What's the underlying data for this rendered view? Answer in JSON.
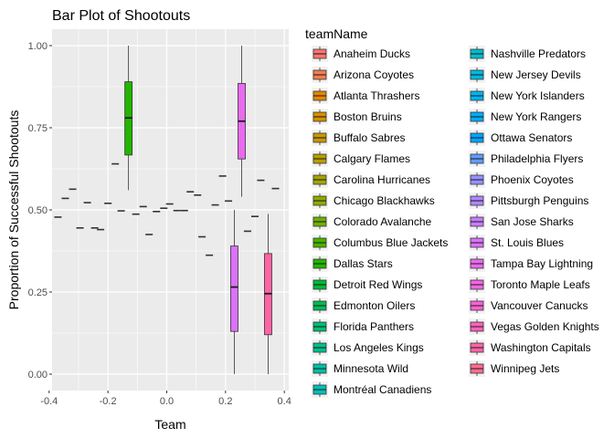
{
  "chart_data": {
    "type": "boxplot",
    "title": "Bar Plot of Shootouts",
    "xlabel": "Team",
    "ylabel": "Proportion of Successful Shootouts",
    "xlim": [
      -0.39,
      0.415
    ],
    "ylim": [
      -0.05,
      1.05
    ],
    "x_ticks": [
      -0.4,
      -0.2,
      0.0,
      0.2,
      0.4
    ],
    "x_tick_labels": [
      "-0.4",
      "-0.2",
      "0.0",
      "0.2",
      "0.4"
    ],
    "y_ticks": [
      0.0,
      0.25,
      0.5,
      0.75,
      1.0
    ],
    "y_tick_labels": [
      "0.00",
      "0.25",
      "0.50",
      "0.75",
      "1.00"
    ],
    "grid": true,
    "legend_title": "teamName",
    "legend_position": "right",
    "series": [
      {
        "name": "Anaheim Ducks",
        "color": "#F8766D",
        "x": -0.37,
        "box": [
          0.478,
          0.478,
          0.478,
          0.478,
          0.478
        ]
      },
      {
        "name": "Arizona Coyotes",
        "color": "#F07F4F",
        "x": -0.345,
        "box": [
          0.535,
          0.535,
          0.535,
          0.535,
          0.535
        ]
      },
      {
        "name": "Atlanta Thrashers",
        "color": "#E58700",
        "x": -0.32,
        "box": [
          0.563,
          0.563,
          0.563,
          0.563,
          0.563
        ]
      },
      {
        "name": "Boston Bruins",
        "color": "#D89000",
        "x": -0.295,
        "box": [
          0.445,
          0.445,
          0.445,
          0.445,
          0.445
        ]
      },
      {
        "name": "Buffalo Sabres",
        "color": "#C99800",
        "x": -0.27,
        "box": [
          0.522,
          0.522,
          0.522,
          0.522,
          0.522
        ]
      },
      {
        "name": "Calgary Flames",
        "color": "#B79F00",
        "x": -0.245,
        "box": [
          0.445,
          0.445,
          0.445,
          0.445,
          0.445
        ]
      },
      {
        "name": "Carolina Hurricanes",
        "color": "#A3A500",
        "x": -0.225,
        "box": [
          0.44,
          0.44,
          0.44,
          0.44,
          0.44
        ]
      },
      {
        "name": "Chicago Blackhawks",
        "color": "#8CAB00",
        "x": -0.2,
        "box": [
          0.52,
          0.52,
          0.52,
          0.52,
          0.52
        ]
      },
      {
        "name": "Colorado Avalanche",
        "color": "#6FB000",
        "x": -0.175,
        "box": [
          0.64,
          0.64,
          0.64,
          0.64,
          0.64
        ]
      },
      {
        "name": "Columbus Blue Jackets",
        "color": "#45B500",
        "x": -0.155,
        "box": [
          0.497,
          0.497,
          0.497,
          0.497,
          0.497
        ]
      },
      {
        "name": "Dallas Stars",
        "color": "#22B600",
        "x": -0.13,
        "box": [
          0.56,
          0.667,
          0.78,
          0.89,
          1.0
        ]
      },
      {
        "name": "Detroit Red Wings",
        "color": "#00BA38",
        "x": -0.105,
        "box": [
          0.487,
          0.487,
          0.487,
          0.487,
          0.487
        ]
      },
      {
        "name": "Edmonton Oilers",
        "color": "#00BC56",
        "x": -0.08,
        "box": [
          0.51,
          0.51,
          0.51,
          0.51,
          0.51
        ]
      },
      {
        "name": "Florida Panthers",
        "color": "#00BF73",
        "x": -0.06,
        "box": [
          0.425,
          0.425,
          0.425,
          0.425,
          0.425
        ]
      },
      {
        "name": "Los Angeles Kings",
        "color": "#00C08B",
        "x": -0.035,
        "box": [
          0.495,
          0.495,
          0.495,
          0.495,
          0.495
        ]
      },
      {
        "name": "Minnesota Wild",
        "color": "#00C1A2",
        "x": -0.01,
        "box": [
          0.505,
          0.505,
          0.505,
          0.505,
          0.505
        ]
      },
      {
        "name": "Montréal Canadiens",
        "color": "#00C0B8",
        "x": 0.01,
        "box": [
          0.518,
          0.518,
          0.518,
          0.518,
          0.518
        ]
      },
      {
        "name": "Nashville Predators",
        "color": "#00BDCD",
        "x": 0.035,
        "box": [
          0.498,
          0.498,
          0.498,
          0.498,
          0.498
        ]
      },
      {
        "name": "New Jersey Devils",
        "color": "#00BAE0",
        "x": 0.06,
        "box": [
          0.498,
          0.498,
          0.498,
          0.498,
          0.498
        ]
      },
      {
        "name": "New York Islanders",
        "color": "#00B4EF",
        "x": 0.08,
        "box": [
          0.555,
          0.555,
          0.555,
          0.555,
          0.555
        ]
      },
      {
        "name": "New York Rangers",
        "color": "#00ADFA",
        "x": 0.105,
        "box": [
          0.545,
          0.545,
          0.545,
          0.545,
          0.545
        ]
      },
      {
        "name": "Ottawa Senators",
        "color": "#00A5FF",
        "x": 0.12,
        "box": [
          0.418,
          0.418,
          0.418,
          0.418,
          0.418
        ]
      },
      {
        "name": "Philadelphia Flyers",
        "color": "#619CFF",
        "x": 0.145,
        "box": [
          0.362,
          0.362,
          0.362,
          0.362,
          0.362
        ]
      },
      {
        "name": "Phoenix Coyotes",
        "color": "#9590FF",
        "x": 0.165,
        "box": [
          0.515,
          0.515,
          0.515,
          0.515,
          0.515
        ]
      },
      {
        "name": "Pittsburgh Penguins",
        "color": "#AE87FF",
        "x": 0.19,
        "box": [
          0.603,
          0.603,
          0.603,
          0.603,
          0.603
        ]
      },
      {
        "name": "San Jose Sharks",
        "color": "#C77CFF",
        "x": 0.21,
        "box": [
          0.527,
          0.527,
          0.527,
          0.527,
          0.527
        ]
      },
      {
        "name": "St. Louis Blues",
        "color": "#DB72FB",
        "x": 0.23,
        "box": [
          0.0,
          0.13,
          0.265,
          0.39,
          0.5
        ]
      },
      {
        "name": "Tampa Bay Lightning",
        "color": "#E96AF0",
        "x": 0.255,
        "box": [
          0.54,
          0.655,
          0.77,
          0.885,
          1.0
        ]
      },
      {
        "name": "Toronto Maple Leafs",
        "color": "#F465E3",
        "x": 0.275,
        "box": [
          0.435,
          0.435,
          0.435,
          0.435,
          0.435
        ]
      },
      {
        "name": "Vancouver Canucks",
        "color": "#FC61D5",
        "x": 0.3,
        "box": [
          0.48,
          0.48,
          0.48,
          0.48,
          0.48
        ]
      },
      {
        "name": "Vegas Golden Knights",
        "color": "#FF62BC",
        "x": 0.32,
        "box": [
          0.59,
          0.59,
          0.59,
          0.59,
          0.59
        ]
      },
      {
        "name": "Washington Capitals",
        "color": "#FF64A5",
        "x": 0.345,
        "box": [
          0.0,
          0.12,
          0.245,
          0.367,
          0.488
        ]
      },
      {
        "name": "Winnipeg Jets",
        "color": "#FF6C91",
        "x": 0.37,
        "box": [
          0.565,
          0.565,
          0.565,
          0.565,
          0.565
        ]
      }
    ]
  }
}
